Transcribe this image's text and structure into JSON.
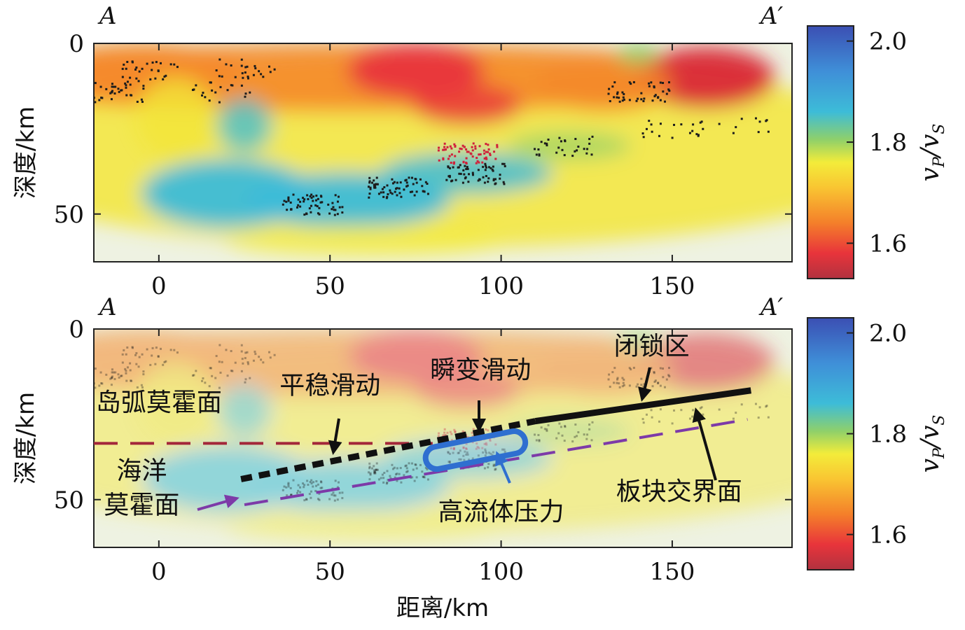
{
  "chart_data": [
    {
      "type": "heatmap",
      "section_start_label": "A",
      "section_end_label": "A′",
      "ylabel": "深度/km",
      "xlim": [
        -19,
        185
      ],
      "ylim": [
        0,
        64
      ],
      "x_ticks": [
        0,
        50,
        100,
        150
      ],
      "y_ticks": [
        0,
        50
      ],
      "colorbar": {
        "label": "vP/vS",
        "ticks": [
          1.6,
          1.8,
          2.0
        ],
        "range": [
          1.53,
          2.03
        ],
        "colors": [
          "#b2323f",
          "#e8343b",
          "#f47f2a",
          "#f9c532",
          "#f3ec3a",
          "#8fd06a",
          "#3dbcd8",
          "#3f8fd8",
          "#3b4fb3"
        ]
      },
      "earthquakes": {
        "clusters": [
          {
            "x": -13,
            "y": 14,
            "count": 40,
            "color": "#1c1c1c"
          },
          {
            "x": -2,
            "y": 8,
            "count": 30,
            "color": "#1c1c1c"
          },
          {
            "x": 25,
            "y": 7,
            "count": 25,
            "color": "#1c1c1c"
          },
          {
            "x": 18,
            "y": 14,
            "count": 20,
            "color": "#1c1c1c"
          },
          {
            "x": 45,
            "y": 47,
            "count": 60,
            "color": "#1c1c1c"
          },
          {
            "x": 70,
            "y": 42,
            "count": 70,
            "color": "#1c1c1c"
          },
          {
            "x": 92,
            "y": 38,
            "count": 60,
            "color": "#1c1c1c"
          },
          {
            "x": 90,
            "y": 32,
            "count": 70,
            "color": "#d0213a"
          },
          {
            "x": 118,
            "y": 30,
            "count": 30,
            "color": "#1c1c1c"
          },
          {
            "x": 140,
            "y": 14,
            "count": 45,
            "color": "#1c1c1c"
          },
          {
            "x": 150,
            "y": 25,
            "count": 20,
            "color": "#1c1c1c"
          },
          {
            "x": 170,
            "y": 24,
            "count": 10,
            "color": "#1c1c1c"
          }
        ]
      }
    },
    {
      "type": "heatmap",
      "section_start_label": "A",
      "section_end_label": "A′",
      "ylabel": "深度/km",
      "xlabel": "距离/km",
      "xlim": [
        -19,
        185
      ],
      "ylim": [
        0,
        64
      ],
      "x_ticks": [
        0,
        50,
        100,
        150
      ],
      "y_ticks": [
        0,
        50
      ],
      "colorbar": {
        "label": "vP/vS",
        "ticks": [
          1.6,
          1.8,
          2.0
        ],
        "range": [
          1.53,
          2.03
        ]
      },
      "interpretation_lines": [
        {
          "name": "岛弧莫霍面",
          "style": "long-dash",
          "color": "#a3273a",
          "points": [
            [
              -19,
              33.5
            ],
            [
              80,
              33.5
            ]
          ]
        },
        {
          "name": "海洋莫霍面",
          "style": "long-dash",
          "color": "#7d3aa8",
          "points": [
            [
              25,
              51.5
            ],
            [
              172,
              26.5
            ]
          ]
        },
        {
          "name": "平稳滑动",
          "style": "short-dash",
          "color": "#111111",
          "points": [
            [
              24,
              44
            ],
            [
              110,
              27
            ]
          ]
        },
        {
          "name": "闭锁区",
          "style": "solid",
          "color": "#111111",
          "points": [
            [
              110,
              27
            ],
            [
              173,
              18
            ]
          ]
        }
      ],
      "high_fluid_zone": {
        "x_start": 80,
        "x_end": 105,
        "y_start": 38,
        "y_end": 33,
        "color": "#2f6fd0"
      },
      "annotations": [
        {
          "text": "岛弧莫霍面",
          "x": 0,
          "y": 24
        },
        {
          "text": "平稳滑动",
          "x": 50,
          "y": 19
        },
        {
          "text": "瞬变滑动",
          "x": 94,
          "y": 14.5
        },
        {
          "text": "闭锁区",
          "x": 144,
          "y": 7.5
        },
        {
          "text": "海洋",
          "x": -5,
          "y": 44
        },
        {
          "text": "莫霍面",
          "x": -5,
          "y": 54
        },
        {
          "text": "高流体压力",
          "x": 100,
          "y": 56
        },
        {
          "text": "板块交界面",
          "x": 152,
          "y": 50
        }
      ],
      "arrows": [
        {
          "label": "平稳滑动",
          "color": "#111111"
        },
        {
          "label": "瞬变滑动",
          "color": "#111111"
        },
        {
          "label": "闭锁区",
          "color": "#111111"
        },
        {
          "label": "板块交界面",
          "color": "#111111"
        },
        {
          "label": "高流体压力",
          "color": "#2f6fd0"
        },
        {
          "label": "海洋莫霍面",
          "color": "#7d3aa8"
        }
      ]
    }
  ]
}
